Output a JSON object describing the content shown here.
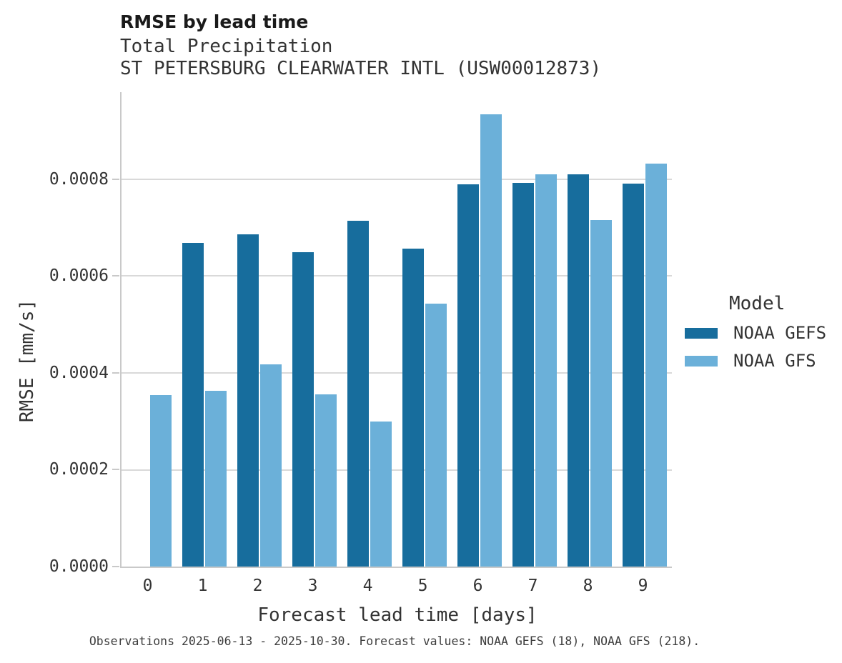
{
  "header": {
    "title": "RMSE by lead time",
    "subtitle1": "Total Precipitation",
    "subtitle2": "ST PETERSBURG CLEARWATER INTL (USW00012873)"
  },
  "footer": {
    "caption": "Observations 2025-06-13 - 2025-10-30. Forecast values: NOAA GEFS (18), NOAA GFS (218)."
  },
  "chart_data": {
    "type": "bar",
    "title": "RMSE by lead time",
    "subtitle": [
      "Total Precipitation",
      "ST PETERSBURG CLEARWATER INTL (USW00012873)"
    ],
    "xlabel": "Forecast lead time [days]",
    "ylabel": "RMSE [mm/s]",
    "categories": [
      "0",
      "1",
      "2",
      "3",
      "4",
      "5",
      "6",
      "7",
      "8",
      "9"
    ],
    "series": [
      {
        "name": "NOAA GEFS",
        "color": "#176d9d",
        "values": [
          null,
          0.000668,
          0.000687,
          0.00065,
          0.000714,
          0.000657,
          0.00079,
          0.000793,
          0.000811,
          0.000791
        ]
      },
      {
        "name": "NOAA GFS",
        "color": "#6bb0d9",
        "values": [
          0.000354,
          0.000363,
          0.000417,
          0.000355,
          0.000299,
          0.000543,
          0.000934,
          0.00081,
          0.000716,
          0.000833
        ]
      }
    ],
    "ylim": [
      0,
      0.00098
    ],
    "yticks": [
      0,
      0.0002,
      0.0004,
      0.0006,
      0.0008
    ],
    "ytick_labels": [
      "0.0000",
      "0.0002",
      "0.0004",
      "0.0006",
      "0.0008"
    ],
    "grid": "horizontal",
    "legend": {
      "title": "Model",
      "position": "right-center"
    }
  },
  "colors": {
    "gefs": "#176d9d",
    "gfs": "#6bb0d9",
    "grid": "#d9d9d9",
    "axis": "#c9c9c9",
    "text": "#333333",
    "caption": "#3d3d3d"
  }
}
